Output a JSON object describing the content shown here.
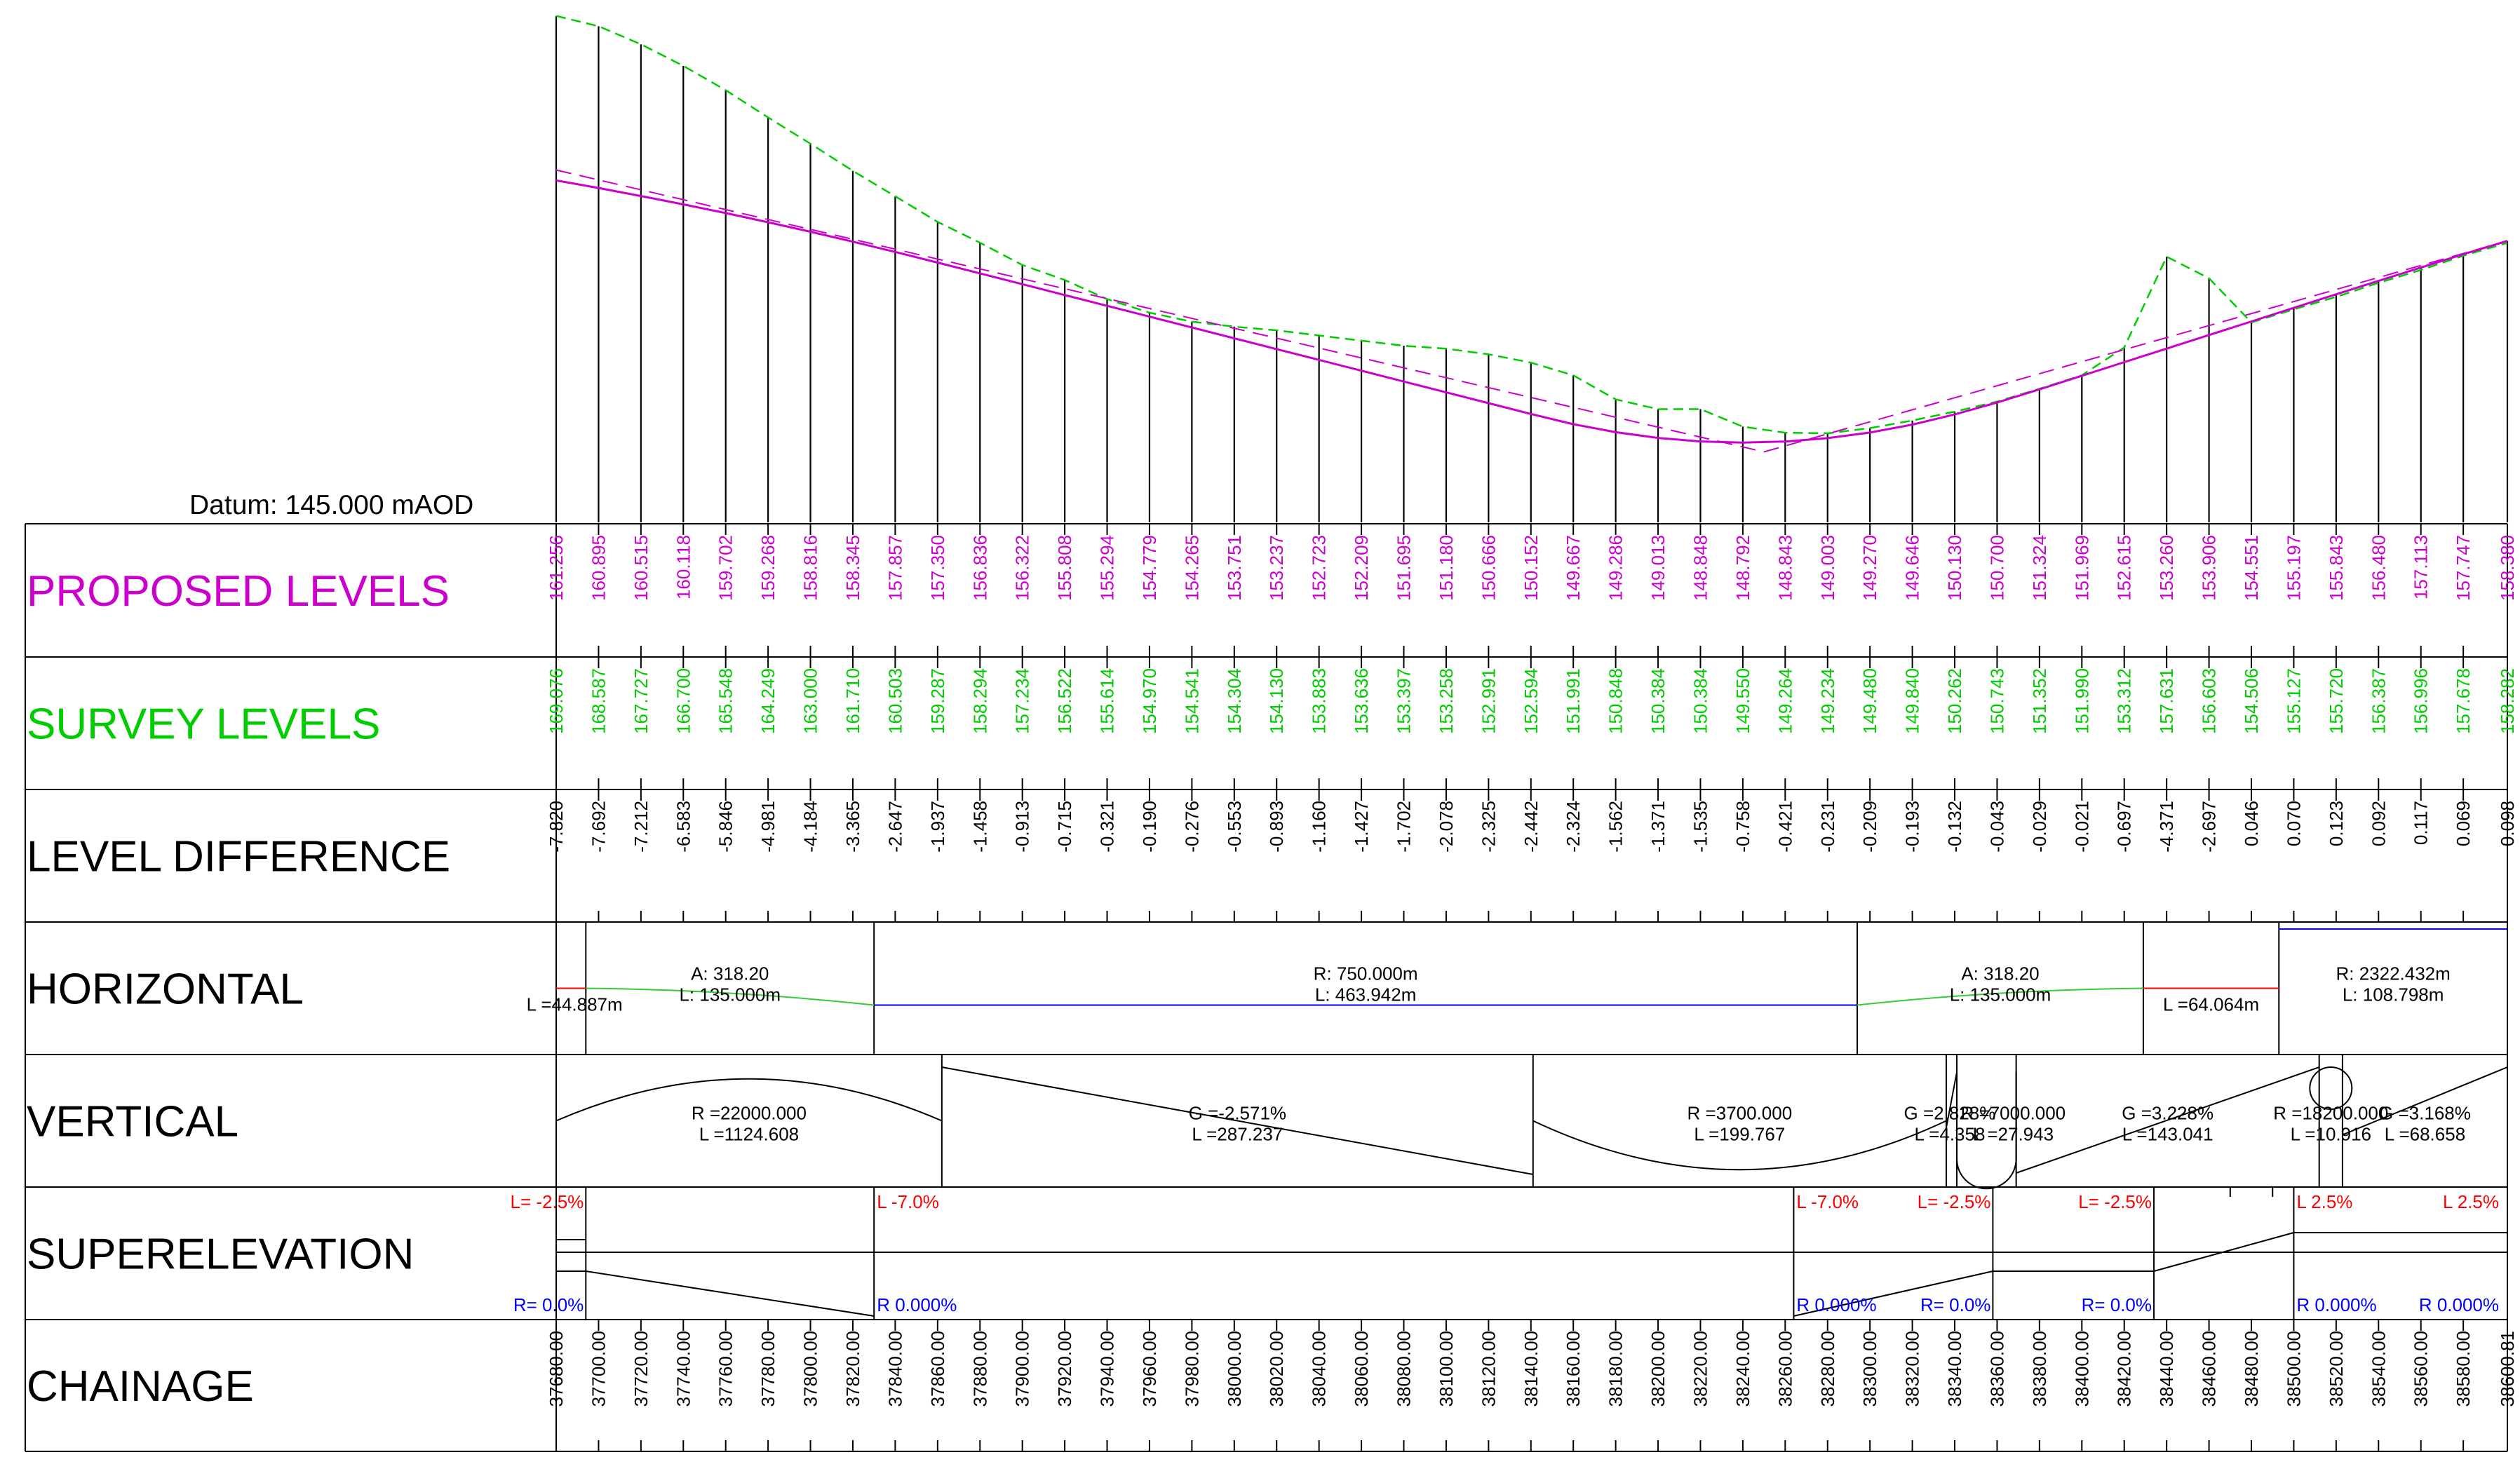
{
  "datum_label": "Datum: 145.000 mAOD",
  "rows": {
    "proposed": "PROPOSED LEVELS",
    "survey": "SURVEY LEVELS",
    "difference": "LEVEL DIFFERENCE",
    "horizontal": "HORIZONTAL",
    "vertical": "VERTICAL",
    "superelevation": "SUPERELEVATION",
    "chainage": "CHAINAGE"
  },
  "colors": {
    "proposed": "#cc00cc",
    "survey": "#00cc00",
    "black": "#000000",
    "red": "#ff0000",
    "blue": "#0000ff",
    "green_line": "#33cc33"
  },
  "chainages": [
    "37680.00",
    "37700.00",
    "37720.00",
    "37740.00",
    "37760.00",
    "37780.00",
    "37800.00",
    "37820.00",
    "37840.00",
    "37860.00",
    "37880.00",
    "37900.00",
    "37920.00",
    "37940.00",
    "37960.00",
    "37980.00",
    "38000.00",
    "38020.00",
    "38040.00",
    "38060.00",
    "38080.00",
    "38100.00",
    "38120.00",
    "38140.00",
    "38160.00",
    "38180.00",
    "38200.00",
    "38220.00",
    "38240.00",
    "38260.00",
    "38280.00",
    "38300.00",
    "38320.00",
    "38340.00",
    "38360.00",
    "38380.00",
    "38400.00",
    "38420.00",
    "38440.00",
    "38460.00",
    "38480.00",
    "38500.00",
    "38520.00",
    "38540.00",
    "38560.00",
    "38580.00",
    "38600.81"
  ],
  "proposed_levels": [
    "161.256",
    "160.895",
    "160.515",
    "160.118",
    "159.702",
    "159.268",
    "158.816",
    "158.345",
    "157.857",
    "157.350",
    "156.836",
    "156.322",
    "155.808",
    "155.294",
    "154.779",
    "154.265",
    "153.751",
    "153.237",
    "152.723",
    "152.209",
    "151.695",
    "151.180",
    "150.666",
    "150.152",
    "149.667",
    "149.286",
    "149.013",
    "148.848",
    "148.792",
    "148.843",
    "149.003",
    "149.270",
    "149.646",
    "150.130",
    "150.700",
    "151.324",
    "151.969",
    "152.615",
    "153.260",
    "153.906",
    "154.551",
    "155.197",
    "155.843",
    "156.480",
    "157.113",
    "157.747",
    "158.380"
  ],
  "survey_levels": [
    "169.076",
    "168.587",
    "167.727",
    "166.700",
    "165.548",
    "164.249",
    "163.000",
    "161.710",
    "160.503",
    "159.287",
    "158.294",
    "157.234",
    "156.522",
    "155.614",
    "154.970",
    "154.541",
    "154.304",
    "154.130",
    "153.883",
    "153.636",
    "153.397",
    "153.258",
    "152.991",
    "152.594",
    "151.991",
    "150.848",
    "150.384",
    "150.384",
    "149.550",
    "149.264",
    "149.234",
    "149.480",
    "149.840",
    "150.262",
    "150.743",
    "151.352",
    "151.990",
    "153.312",
    "157.631",
    "156.603",
    "154.506",
    "155.127",
    "155.720",
    "156.387",
    "156.996",
    "157.678",
    "158.282"
  ],
  "level_differences": [
    "-7.820",
    "-7.692",
    "-7.212",
    "-6.583",
    "-5.846",
    "-4.981",
    "-4.184",
    "-3.365",
    "-2.647",
    "-1.937",
    "-1.458",
    "-0.913",
    "-0.715",
    "-0.321",
    "-0.190",
    "-0.276",
    "-0.553",
    "-0.893",
    "-1.160",
    "-1.427",
    "-1.702",
    "-2.078",
    "-2.325",
    "-2.442",
    "-2.324",
    "-1.562",
    "-1.371",
    "-1.535",
    "-0.758",
    "-0.421",
    "-0.231",
    "-0.209",
    "-0.193",
    "-0.132",
    "-0.043",
    "-0.029",
    "-0.021",
    "-0.697",
    "-4.371",
    "-2.697",
    "0.046",
    "0.070",
    "0.123",
    "0.092",
    "0.117",
    "0.069",
    "0.098"
  ],
  "horizontal": {
    "labels": [
      {
        "id": "h1",
        "lines": [
          "L =44.887m"
        ]
      },
      {
        "id": "h2",
        "lines": [
          "A: 318.20",
          "L: 135.000m"
        ]
      },
      {
        "id": "h3",
        "lines": [
          "R: 750.000m",
          "L: 463.942m"
        ]
      },
      {
        "id": "h4",
        "lines": [
          "A: 318.20",
          "L: 135.000m"
        ]
      },
      {
        "id": "h5",
        "lines": [
          "L =64.064m"
        ]
      },
      {
        "id": "h6",
        "lines": [
          "R: 2322.432m",
          "L: 108.798m"
        ]
      }
    ]
  },
  "vertical": {
    "labels": [
      {
        "id": "v1",
        "lines": [
          "R =22000.000",
          "L =1124.608"
        ]
      },
      {
        "id": "v2",
        "lines": [
          "G =-2.571%",
          "L =287.237"
        ]
      },
      {
        "id": "v3",
        "lines": [
          "R =3700.000",
          "L =199.767"
        ]
      },
      {
        "id": "v4",
        "lines": [
          "G =2.828%",
          "L =4.358"
        ]
      },
      {
        "id": "v5",
        "lines": [
          "R =7000.000",
          "L =27.943"
        ]
      },
      {
        "id": "v6",
        "lines": [
          "G =3.228%",
          "L =143.041"
        ]
      },
      {
        "id": "v7",
        "lines": [
          "R =18200.000",
          "L =10.916"
        ]
      },
      {
        "id": "v8",
        "lines": [
          "G =3.168%",
          "L =68.658"
        ]
      }
    ]
  },
  "superelevation": {
    "left": [
      "L= -2.5%",
      "L -7.0%",
      "L -7.0%",
      "L= -2.5%",
      "L= -2.5%",
      "L 2.5%",
      "L 2.5%"
    ],
    "right": [
      "R= 0.0%",
      "R 0.000%",
      "R 0.000%",
      "R= 0.0%",
      "R= 0.0%",
      "R 0.000%",
      "R 0.000%"
    ]
  }
}
